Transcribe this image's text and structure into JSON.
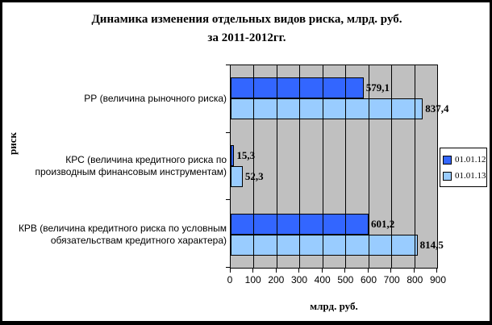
{
  "chart_data": {
    "type": "bar",
    "orientation": "horizontal",
    "title_line1": "Динамика изменения отдельных видов риска, млрд. руб.",
    "title_line2": "за 2011-2012гг.",
    "xlabel": "млрд. руб.",
    "ylabel": "риск",
    "xlim": [
      0,
      900
    ],
    "x_ticks": [
      "0",
      "100",
      "200",
      "300",
      "400",
      "500",
      "600",
      "700",
      "800",
      "900"
    ],
    "grid": "vertical",
    "plot_background": "#C0C0C0",
    "legend_position": "right",
    "categories": [
      {
        "lines": [
          "РР (величина рыночного риска)"
        ]
      },
      {
        "lines": [
          "КРС (величина кредитного риска по",
          "производным финансовым инструментам)"
        ]
      },
      {
        "lines": [
          "КРВ (величина кредитного риска по условным",
          "обязательствам кредитного характера)"
        ]
      }
    ],
    "series": [
      {
        "name": "01.01.12",
        "color": "#3366FF",
        "values": [
          579.1,
          15.3,
          601.2
        ],
        "labels": [
          "579,1",
          "15,3",
          "601,2"
        ]
      },
      {
        "name": "01.01.13",
        "color": "#99CCFF",
        "values": [
          837.4,
          52.3,
          814.5
        ],
        "labels": [
          "837,4",
          "52,3",
          "814,5"
        ]
      }
    ]
  }
}
